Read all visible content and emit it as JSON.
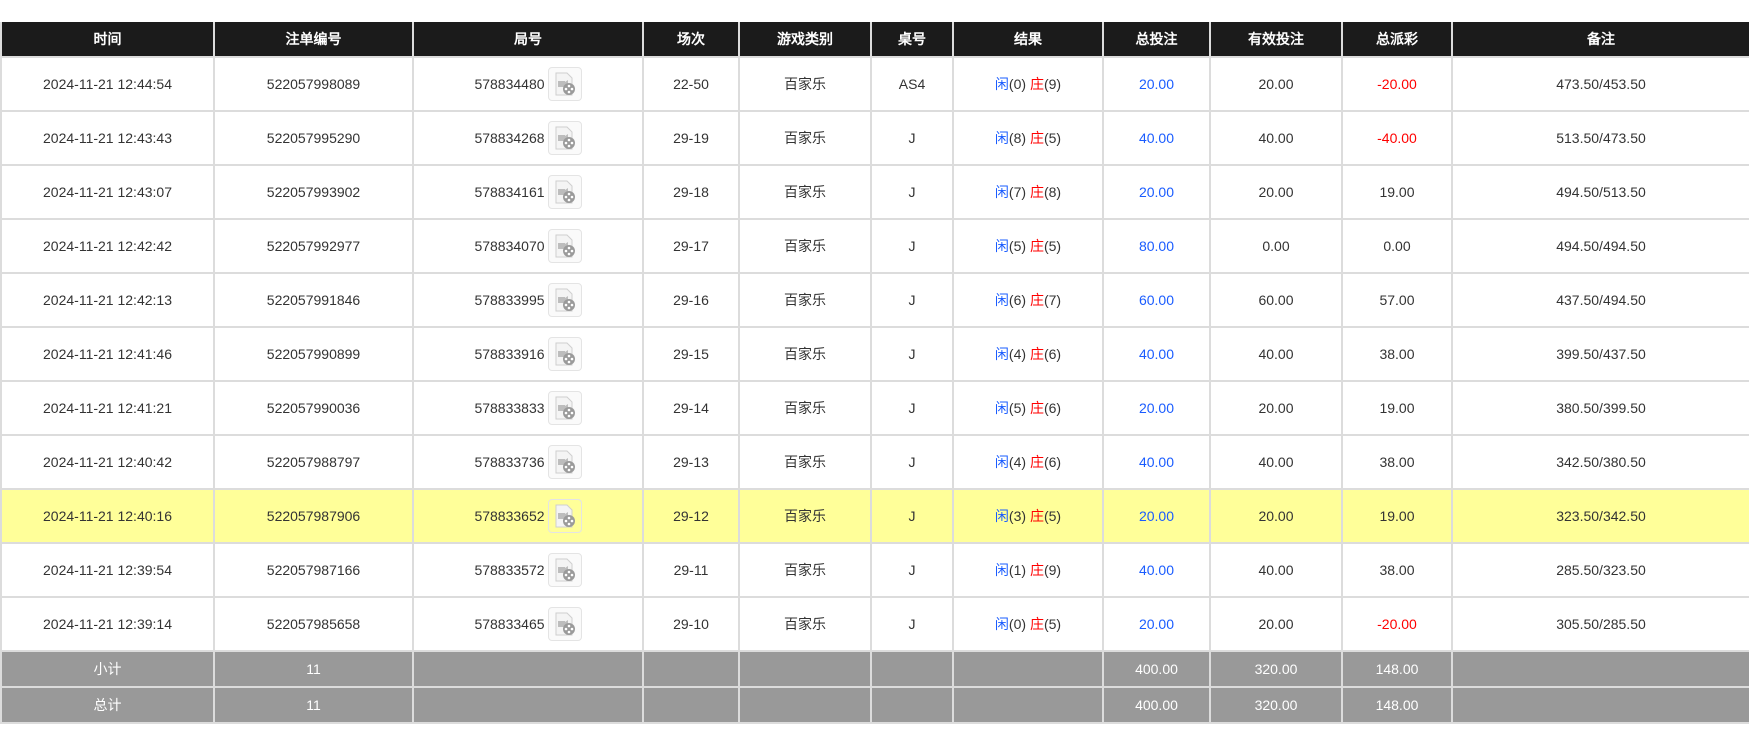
{
  "colors": {
    "header_bg": "#1b1b1b",
    "highlight": "#ffff99",
    "summary_bg": "#999999",
    "blue": "#1a5cff",
    "red": "#ff0000"
  },
  "headers": [
    "时间",
    "注单编号",
    "局号",
    "场次",
    "游戏类别",
    "桌号",
    "结果",
    "总投注",
    "有效投注",
    "总派彩",
    "备注"
  ],
  "result_labels": {
    "player": "闲",
    "banker": "庄"
  },
  "highlighted_row": 8,
  "rows": [
    {
      "time": "2024-11-21 12:44:54",
      "order": "522057998089",
      "round": "578834480",
      "session": "22-50",
      "game": "百家乐",
      "table": "AS4",
      "player": "(0)",
      "banker": "(9)",
      "bet": "20.00",
      "valid": "20.00",
      "payout": "-20.00",
      "note": "473.50/453.50"
    },
    {
      "time": "2024-11-21 12:43:43",
      "order": "522057995290",
      "round": "578834268",
      "session": "29-19",
      "game": "百家乐",
      "table": "J",
      "player": "(8)",
      "banker": "(5)",
      "bet": "40.00",
      "valid": "40.00",
      "payout": "-40.00",
      "note": "513.50/473.50"
    },
    {
      "time": "2024-11-21 12:43:07",
      "order": "522057993902",
      "round": "578834161",
      "session": "29-18",
      "game": "百家乐",
      "table": "J",
      "player": "(7)",
      "banker": "(8)",
      "bet": "20.00",
      "valid": "20.00",
      "payout": "19.00",
      "note": "494.50/513.50"
    },
    {
      "time": "2024-11-21 12:42:42",
      "order": "522057992977",
      "round": "578834070",
      "session": "29-17",
      "game": "百家乐",
      "table": "J",
      "player": "(5)",
      "banker": "(5)",
      "bet": "80.00",
      "valid": "0.00",
      "payout": "0.00",
      "note": "494.50/494.50"
    },
    {
      "time": "2024-11-21 12:42:13",
      "order": "522057991846",
      "round": "578833995",
      "session": "29-16",
      "game": "百家乐",
      "table": "J",
      "player": "(6)",
      "banker": "(7)",
      "bet": "60.00",
      "valid": "60.00",
      "payout": "57.00",
      "note": "437.50/494.50"
    },
    {
      "time": "2024-11-21 12:41:46",
      "order": "522057990899",
      "round": "578833916",
      "session": "29-15",
      "game": "百家乐",
      "table": "J",
      "player": "(4)",
      "banker": "(6)",
      "bet": "40.00",
      "valid": "40.00",
      "payout": "38.00",
      "note": "399.50/437.50"
    },
    {
      "time": "2024-11-21 12:41:21",
      "order": "522057990036",
      "round": "578833833",
      "session": "29-14",
      "game": "百家乐",
      "table": "J",
      "player": "(5)",
      "banker": "(6)",
      "bet": "20.00",
      "valid": "20.00",
      "payout": "19.00",
      "note": "380.50/399.50"
    },
    {
      "time": "2024-11-21 12:40:42",
      "order": "522057988797",
      "round": "578833736",
      "session": "29-13",
      "game": "百家乐",
      "table": "J",
      "player": "(4)",
      "banker": "(6)",
      "bet": "40.00",
      "valid": "40.00",
      "payout": "38.00",
      "note": "342.50/380.50"
    },
    {
      "time": "2024-11-21 12:40:16",
      "order": "522057987906",
      "round": "578833652",
      "session": "29-12",
      "game": "百家乐",
      "table": "J",
      "player": "(3)",
      "banker": "(5)",
      "bet": "20.00",
      "valid": "20.00",
      "payout": "19.00",
      "note": "323.50/342.50"
    },
    {
      "time": "2024-11-21 12:39:54",
      "order": "522057987166",
      "round": "578833572",
      "session": "29-11",
      "game": "百家乐",
      "table": "J",
      "player": "(1)",
      "banker": "(9)",
      "bet": "40.00",
      "valid": "40.00",
      "payout": "38.00",
      "note": "285.50/323.50"
    },
    {
      "time": "2024-11-21 12:39:14",
      "order": "522057985658",
      "round": "578833465",
      "session": "29-10",
      "game": "百家乐",
      "table": "J",
      "player": "(0)",
      "banker": "(5)",
      "bet": "20.00",
      "valid": "20.00",
      "payout": "-20.00",
      "note": "305.50/285.50"
    }
  ],
  "subtotal": {
    "label": "小计",
    "count": "11",
    "bet": "400.00",
    "valid": "320.00",
    "payout": "148.00"
  },
  "total": {
    "label": "总计",
    "count": "11",
    "bet": "400.00",
    "valid": "320.00",
    "payout": "148.00"
  }
}
